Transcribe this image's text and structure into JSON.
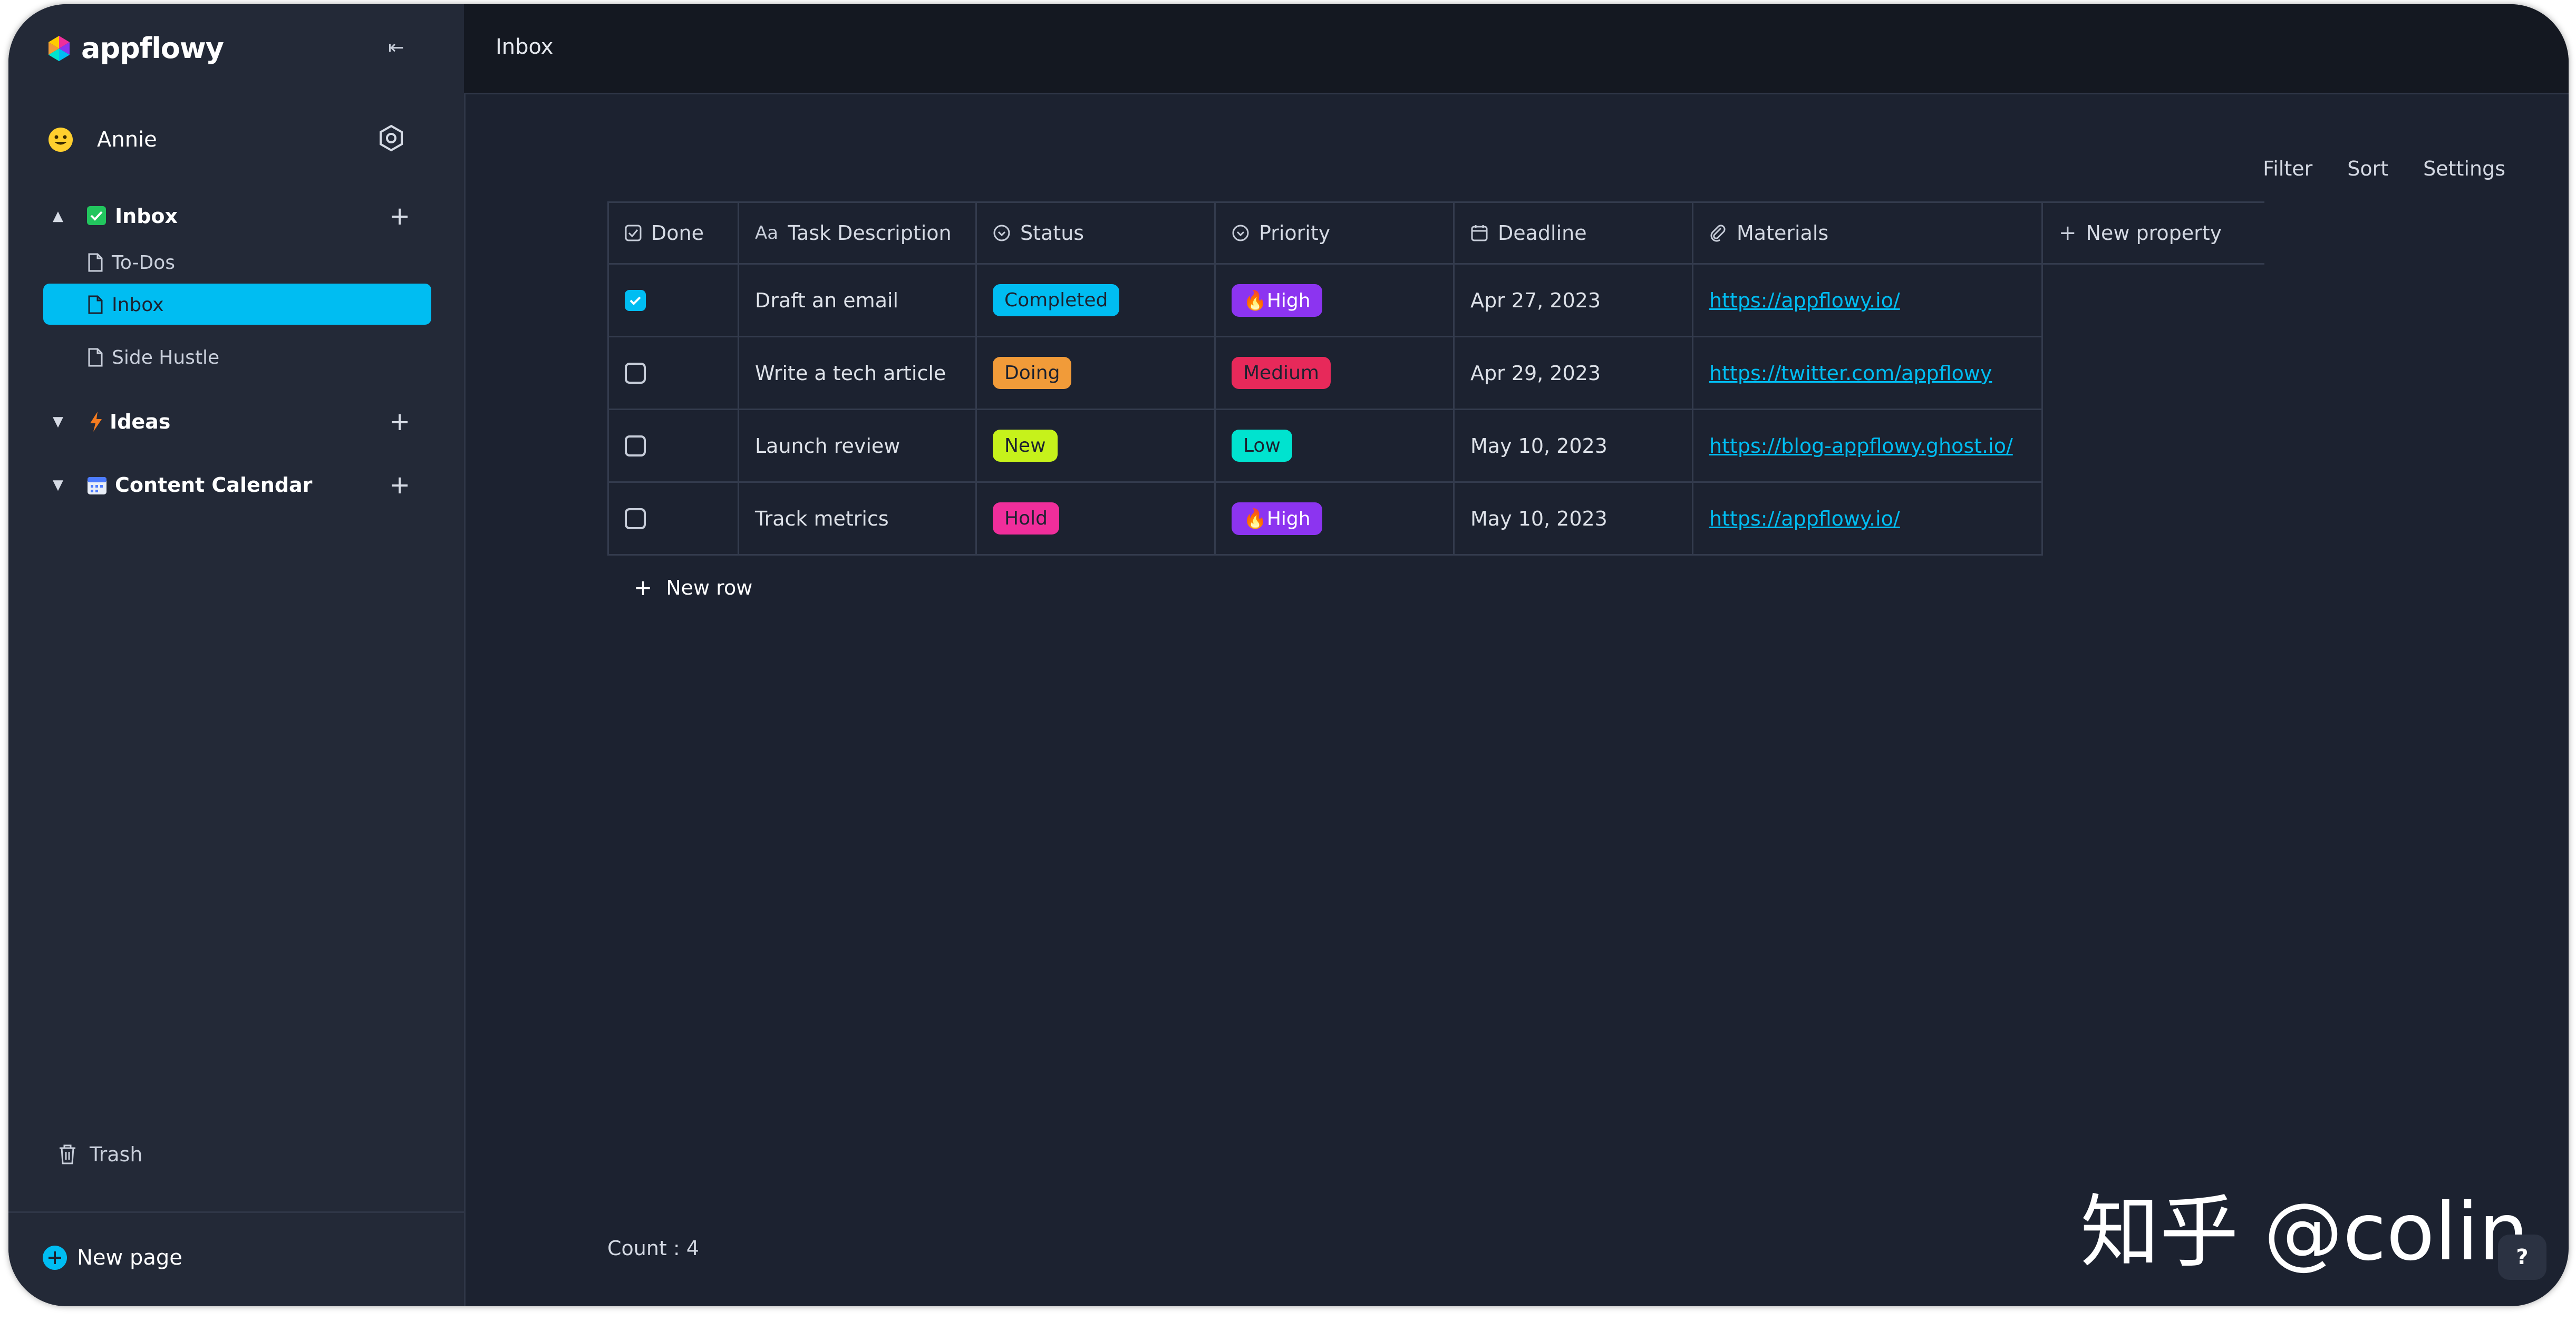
{
  "app": {
    "name": "appflowy"
  },
  "sidebar": {
    "user_name": "Annie",
    "inbox_label": "Inbox",
    "children": [
      "To-Dos",
      "Inbox",
      "Side Hustle"
    ],
    "ideas_label": "Ideas",
    "calendar_label": "Content Calendar",
    "trash_label": "Trash",
    "new_page_label": "New page"
  },
  "header": {
    "breadcrumb": "Inbox"
  },
  "toolbar": {
    "filter": "Filter",
    "sort": "Sort",
    "settings": "Settings"
  },
  "grid": {
    "columns": [
      "Done",
      "Task Description",
      "Status",
      "Priority",
      "Deadline",
      "Materials"
    ],
    "new_property": "New property",
    "rows": [
      {
        "done": true,
        "task": "Draft an email",
        "status": "Completed",
        "priority": "High",
        "deadline": "Apr 27, 2023",
        "material": "https://appflowy.io/"
      },
      {
        "done": false,
        "task": "Write a tech article",
        "status": "Doing",
        "priority": "Medium",
        "deadline": "Apr 29, 2023",
        "material": "https://twitter.com/appflowy"
      },
      {
        "done": false,
        "task": "Launch review",
        "status": "New",
        "priority": "Low",
        "deadline": "May 10, 2023",
        "material": "https://blog-appflowy.ghost.io/"
      },
      {
        "done": false,
        "task": "Track metrics",
        "status": "Hold",
        "priority": "High",
        "deadline": "May 10, 2023",
        "material": "https://appflowy.io/"
      }
    ],
    "new_row": "New row",
    "count": "Count : 4"
  },
  "colors": {
    "accent": "#00bdf2",
    "status_completed": "#00bdf2",
    "status_doing": "#f19b39",
    "status_new": "#c6f21b",
    "status_hold": "#f02e9b",
    "priority_high": "#8c34f0",
    "priority_medium": "#e7295a",
    "priority_low": "#00e3cf"
  },
  "watermark": "知乎 @colin",
  "help_label": "?"
}
